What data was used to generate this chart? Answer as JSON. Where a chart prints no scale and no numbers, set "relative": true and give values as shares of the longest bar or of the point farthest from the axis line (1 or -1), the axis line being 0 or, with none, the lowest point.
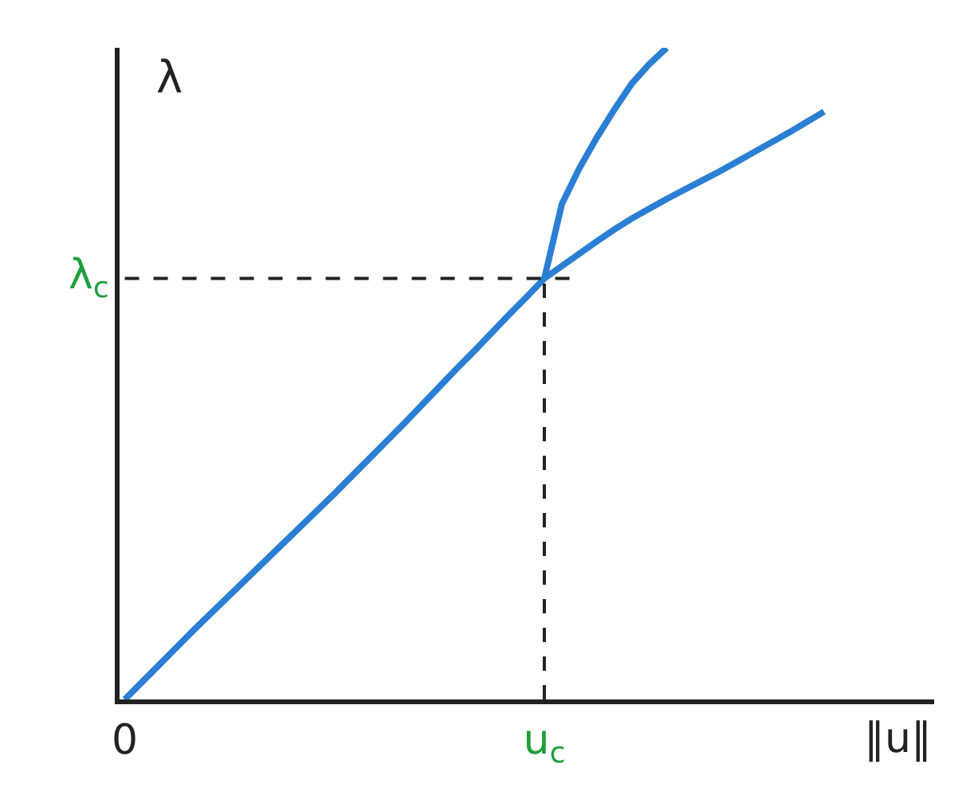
{
  "chart_data": {
    "type": "line",
    "relative": true,
    "xlabel": "‖u‖",
    "ylabel": "λ",
    "categories": [
      "0",
      null,
      null,
      null,
      null,
      null,
      null,
      null,
      null,
      null,
      null,
      null,
      null,
      null,
      null,
      null,
      null,
      null,
      null,
      null,
      null,
      null,
      null,
      null,
      "u$_{c}$",
      null,
      null,
      null,
      null,
      null,
      null,
      null,
      null,
      null,
      null,
      null,
      null,
      null,
      null,
      null,
      null,
      null,
      null,
      null,
      null,
      null,
      null
    ],
    "series": [
      {
        "color": "#2a7fd4",
        "values": [
          0,
          0.027,
          0.054,
          0.081,
          0.108,
          0.134,
          0.16,
          0.186,
          0.212,
          0.238,
          0.264,
          0.29,
          0.316,
          0.343,
          0.37,
          0.397,
          0.424,
          0.452,
          0.48,
          0.508,
          0.535,
          0.563,
          0.591,
          0.618,
          0.646,
          0.665,
          0.684,
          0.703,
          0.721,
          0.738,
          0.753,
          0.768,
          0.782,
          0.796,
          0.81,
          0.825,
          0.84,
          0.855,
          0.87,
          0.886,
          0.902,
          null,
          null,
          null,
          null,
          null,
          null
        ]
      },
      {
        "color": "#2a7fd4",
        "values": [
          null,
          null,
          null,
          null,
          null,
          null,
          null,
          null,
          null,
          null,
          null,
          null,
          null,
          null,
          null,
          null,
          null,
          null,
          null,
          null,
          null,
          null,
          null,
          null,
          0.646,
          0.76,
          0.815,
          0.862,
          0.905,
          0.945,
          0.975,
          1,
          null,
          null,
          null,
          null,
          null,
          null,
          null,
          null,
          null,
          null,
          null,
          null,
          null,
          null,
          null
        ]
      }
    ],
    "ref_lines": [
      {
        "axis": "x",
        "value": "u$_{c}$",
        "color": "#222222",
        "line_style": "dashed"
      },
      {
        "axis": "y",
        "value": 0.646,
        "label": "λ$_{c}$",
        "color": "#222222",
        "line_style": "dashed"
      }
    ],
    "marker": "none",
    "line_style": "solid"
  }
}
